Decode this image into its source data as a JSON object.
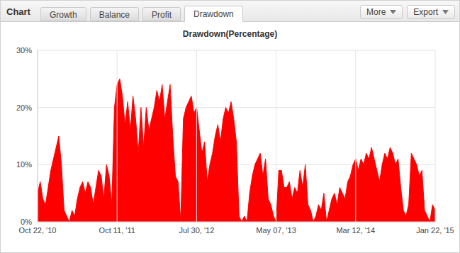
{
  "panel": {
    "label": "Chart",
    "tabs": [
      "Growth",
      "Balance",
      "Profit",
      "Drawdown"
    ],
    "active_tab": "Drawdown",
    "buttons": [
      "More",
      "Export"
    ]
  },
  "chart_data": {
    "type": "area",
    "title": "Drawdown(Percentage)",
    "categories": [
      "Oct 22, '10",
      null,
      null,
      null,
      null,
      null,
      null,
      null,
      null,
      null,
      null,
      null,
      null,
      null,
      null,
      null,
      null,
      null,
      null,
      null,
      null,
      null,
      null,
      null,
      null,
      null,
      null,
      null,
      null,
      null,
      "Oct 11, '11",
      null,
      null,
      null,
      null,
      null,
      null,
      null,
      null,
      null,
      null,
      null,
      null,
      null,
      null,
      null,
      null,
      null,
      null,
      null,
      null,
      null,
      null,
      null,
      null,
      null,
      null,
      null,
      null,
      null,
      "Jul 30, '12",
      null,
      null,
      null,
      null,
      null,
      null,
      null,
      null,
      null,
      null,
      null,
      null,
      null,
      null,
      null,
      null,
      null,
      null,
      null,
      null,
      null,
      null,
      null,
      null,
      null,
      null,
      null,
      null,
      null,
      "May 07, '13",
      null,
      null,
      null,
      null,
      null,
      null,
      null,
      null,
      null,
      null,
      null,
      null,
      null,
      null,
      null,
      null,
      null,
      null,
      null,
      null,
      null,
      null,
      null,
      null,
      null,
      null,
      null,
      null,
      null,
      "Mar 12, '14",
      null,
      null,
      null,
      null,
      null,
      null,
      null,
      null,
      null,
      null,
      null,
      null,
      null,
      null,
      null,
      null,
      null,
      null,
      null,
      null,
      null,
      null,
      null,
      null,
      null,
      null,
      null,
      null,
      null,
      "Jan 22, '15"
    ],
    "values": [
      5,
      7,
      4,
      3,
      6,
      9,
      11,
      13,
      15,
      10,
      2,
      1,
      0,
      2,
      1,
      4,
      6,
      7,
      5,
      7,
      6,
      3,
      6,
      9,
      8,
      4,
      10,
      8,
      3,
      20,
      24,
      25,
      22,
      17,
      21,
      16,
      22,
      18,
      12,
      20,
      13,
      20,
      16,
      18,
      20,
      23,
      21,
      24,
      18,
      21,
      24,
      15,
      8,
      7,
      0,
      18,
      20,
      21,
      22,
      19,
      20,
      16,
      12,
      14,
      7,
      10,
      12,
      15,
      17,
      14,
      18,
      20,
      19,
      21,
      18,
      14,
      1,
      0,
      1,
      0,
      5,
      8,
      10,
      11,
      12,
      8,
      11,
      4,
      3,
      1,
      0,
      9,
      9,
      6,
      6,
      7,
      4,
      6,
      5,
      9,
      6,
      10,
      3,
      2,
      0,
      1,
      3,
      2,
      5,
      0,
      2,
      4,
      5,
      3,
      6,
      5,
      4,
      7,
      8,
      10,
      11,
      9,
      11,
      10,
      12,
      11,
      13,
      11,
      9,
      7,
      10,
      12,
      11,
      13,
      12,
      10,
      11,
      6,
      2,
      1,
      3,
      12,
      11,
      10,
      8,
      9,
      2,
      1,
      0,
      3,
      2
    ],
    "color": "#ff0000",
    "ylim": [
      0,
      30
    ],
    "yticks": [
      {
        "value": 0,
        "label": "0%"
      },
      {
        "value": 10,
        "label": "10%"
      },
      {
        "value": 20,
        "label": "20%"
      },
      {
        "value": 30,
        "label": "30%"
      }
    ],
    "grid": true
  }
}
